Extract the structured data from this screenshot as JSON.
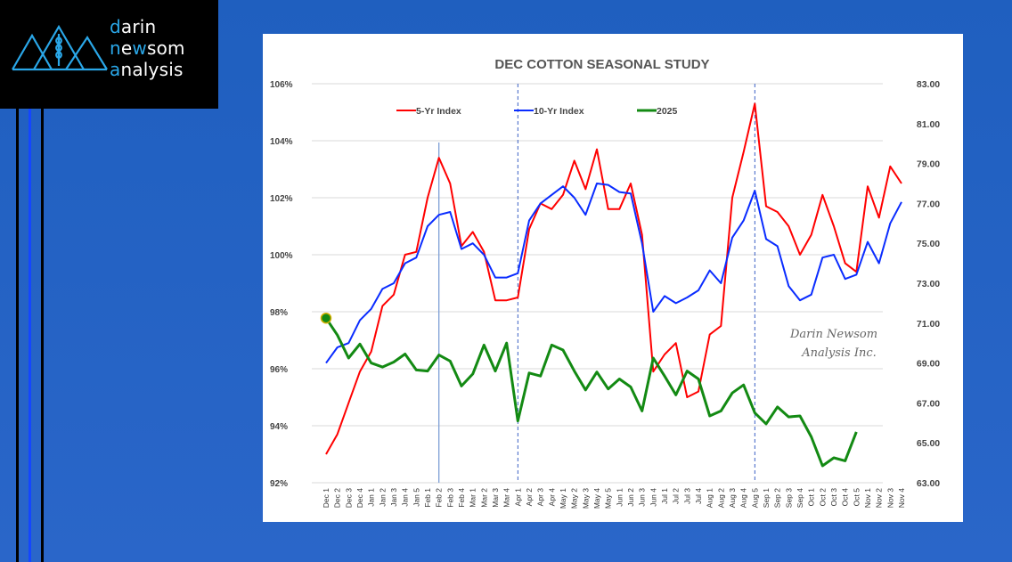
{
  "brand": {
    "line1_accent": "d",
    "line1_rest": "arin",
    "line2_accent": "n",
    "line2_mid": "e",
    "line2_accent2": "w",
    "line2_rest": "som",
    "line3_accent": "a",
    "line3_rest": "nalysis",
    "accent_color": "#2aa7e8",
    "logo_icon": "mountains-wheat-icon"
  },
  "watermark": {
    "line1": "Darin Newsom",
    "line2": "Analysis Inc."
  },
  "chart_data": {
    "type": "line",
    "title": "DEC COTTON SEASONAL STUDY",
    "xlabel": "",
    "ylabel_left": "",
    "ylabel_right": "",
    "legend_position": "top",
    "grid": true,
    "categories": [
      "Dec 1",
      "Dec 2",
      "Dec 3",
      "Dec 4",
      "Jan 1",
      "Jan 2",
      "Jan 3",
      "Jan 4",
      "Jan 5",
      "Feb 1",
      "Feb 2",
      "Feb 3",
      "Feb 4",
      "Mar 1",
      "Mar 2",
      "Mar 3",
      "Mar 4",
      "Apr 1",
      "Apr 2",
      "Apr 3",
      "Apr 4",
      "May 1",
      "May 2",
      "May 3",
      "May 4",
      "May 5",
      "Jun 1",
      "Jun 2",
      "Jun 3",
      "Jun 4",
      "Jul 1",
      "Jul 2",
      "Jul 3",
      "Jul 4",
      "Aug 1",
      "Aug 2",
      "Aug 3",
      "Aug 4",
      "Aug 5",
      "Sep 1",
      "Sep 2",
      "Sep 3",
      "Sep 4",
      "Oct 1",
      "Oct 2",
      "Oct 3",
      "Oct 4",
      "Oct 5",
      "Nov 1",
      "Nov 2",
      "Nov 3",
      "Nov 4"
    ],
    "left_axis": {
      "min": 92,
      "max": 106,
      "step": 2,
      "format": "percent",
      "tick_labels": [
        "92%",
        "94%",
        "96%",
        "98%",
        "100%",
        "102%",
        "104%",
        "106%"
      ]
    },
    "right_axis": {
      "min": 63,
      "max": 83,
      "step": 2,
      "tick_labels": [
        "63.00",
        "65.00",
        "67.00",
        "69.00",
        "71.00",
        "73.00",
        "75.00",
        "77.00",
        "79.00",
        "81.00",
        "83.00"
      ]
    },
    "series": [
      {
        "name": "5-Yr Index",
        "axis": "left",
        "color": "#ff0000",
        "values": [
          93.0,
          93.7,
          94.8,
          95.9,
          96.6,
          98.2,
          98.6,
          100.0,
          100.1,
          102.0,
          103.4,
          102.5,
          100.3,
          100.8,
          100.1,
          98.4,
          98.4,
          98.5,
          100.9,
          101.8,
          101.6,
          102.1,
          103.3,
          102.3,
          103.7,
          101.6,
          101.6,
          102.5,
          100.7,
          95.9,
          96.5,
          96.9,
          95.0,
          95.2,
          97.2,
          97.5,
          102.0,
          103.6,
          105.3,
          101.7,
          101.5,
          101.0,
          100.0,
          100.7,
          102.1,
          101.0,
          99.7,
          99.4,
          102.4,
          101.3,
          103.1,
          102.5
        ]
      },
      {
        "name": "10-Yr Index",
        "axis": "left",
        "color": "#0a2cff",
        "values": [
          96.2,
          96.75,
          96.9,
          97.7,
          98.1,
          98.8,
          99.0,
          99.7,
          99.9,
          101.0,
          101.4,
          101.5,
          100.2,
          100.4,
          100.0,
          99.2,
          99.2,
          99.35,
          101.2,
          101.8,
          102.1,
          102.4,
          102.0,
          101.4,
          102.5,
          102.45,
          102.2,
          102.15,
          100.4,
          98.0,
          98.55,
          98.3,
          98.5,
          98.75,
          99.45,
          99.0,
          100.6,
          101.2,
          102.25,
          100.55,
          100.3,
          98.9,
          98.4,
          98.6,
          99.9,
          100.0,
          99.15,
          99.3,
          100.45,
          99.7,
          101.1,
          101.85
        ]
      },
      {
        "name": "2025",
        "axis": "right",
        "color": "#138a13",
        "values": [
          71.25,
          70.4,
          69.25,
          69.95,
          69.0,
          68.8,
          69.05,
          69.45,
          68.65,
          68.6,
          69.4,
          69.1,
          67.85,
          68.45,
          69.9,
          68.6,
          70.0,
          66.1,
          68.5,
          68.35,
          69.9,
          69.65,
          68.6,
          67.65,
          68.55,
          67.7,
          68.2,
          67.8,
          66.6,
          69.25,
          68.35,
          67.4,
          68.6,
          68.2,
          66.35,
          66.6,
          67.5,
          67.9,
          66.5,
          65.95,
          66.8,
          66.3,
          66.35,
          65.3,
          63.85,
          64.25,
          64.1,
          65.55
        ],
        "first_point_marker": true
      }
    ],
    "vertical_markers": [
      {
        "at": "Feb 2",
        "style": "solid"
      },
      {
        "at": "Apr 1",
        "style": "dashed"
      },
      {
        "at": "Aug 5",
        "style": "dashed"
      }
    ]
  }
}
